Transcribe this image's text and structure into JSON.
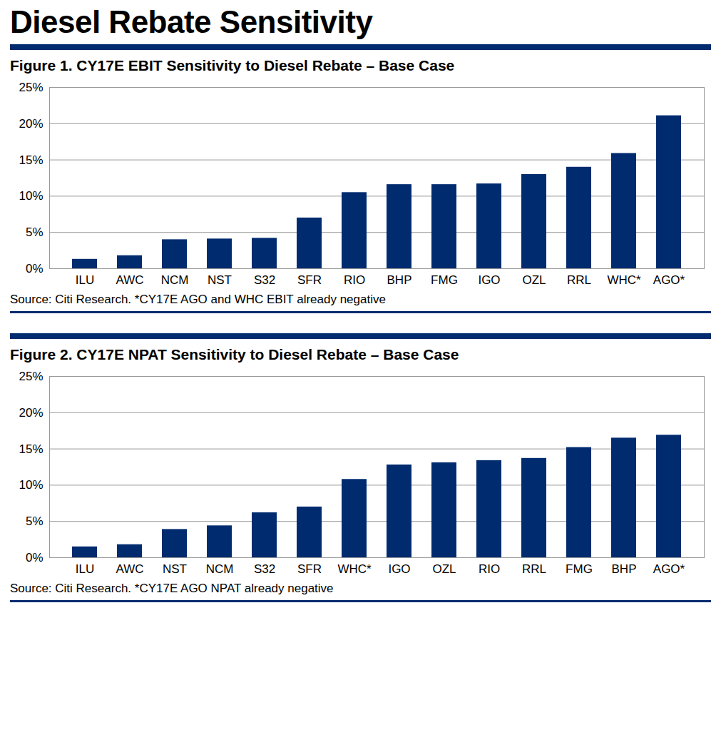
{
  "title": "Diesel Rebate Sensitivity",
  "chart_data": [
    {
      "type": "bar",
      "title": "Figure 1. CY17E EBIT Sensitivity to Diesel Rebate – Base Case",
      "caption": "Source: Citi Research. *CY17E AGO and WHC EBIT already negative",
      "categories": [
        "ILU",
        "AWC",
        "NCM",
        "NST",
        "S32",
        "SFR",
        "RIO",
        "BHP",
        "FMG",
        "IGO",
        "OZL",
        "RRL",
        "WHC*",
        "AGO*"
      ],
      "values": [
        1.3,
        1.8,
        4.0,
        4.1,
        4.2,
        7.0,
        10.5,
        11.6,
        11.6,
        11.7,
        13.0,
        14.0,
        15.9,
        21.1
      ],
      "color": "#002B6F",
      "ylim": [
        0,
        25
      ],
      "yticks": [
        {
          "value": 0,
          "label": "0%"
        },
        {
          "value": 5,
          "label": "5%"
        },
        {
          "value": 10,
          "label": "10%"
        },
        {
          "value": 15,
          "label": "15%"
        },
        {
          "value": 20,
          "label": "20%"
        },
        {
          "value": 25,
          "label": "25%"
        }
      ],
      "grid": true
    },
    {
      "type": "bar",
      "title": "Figure 2. CY17E NPAT Sensitivity to Diesel Rebate – Base Case",
      "caption": "Source: Citi Research. *CY17E AGO NPAT already negative",
      "categories": [
        "ILU",
        "AWC",
        "NST",
        "NCM",
        "S32",
        "SFR",
        "WHC*",
        "IGO",
        "OZL",
        "RIO",
        "RRL",
        "FMG",
        "BHP",
        "AGO*"
      ],
      "values": [
        1.5,
        1.8,
        3.9,
        4.4,
        6.2,
        7.0,
        10.8,
        12.8,
        13.1,
        13.4,
        13.7,
        15.2,
        16.5,
        16.9
      ],
      "color": "#002B6F",
      "ylim": [
        0,
        25
      ],
      "yticks": [
        {
          "value": 0,
          "label": "0%"
        },
        {
          "value": 5,
          "label": "5%"
        },
        {
          "value": 10,
          "label": "10%"
        },
        {
          "value": 15,
          "label": "15%"
        },
        {
          "value": 20,
          "label": "20%"
        },
        {
          "value": 25,
          "label": "25%"
        }
      ],
      "grid": true
    }
  ]
}
